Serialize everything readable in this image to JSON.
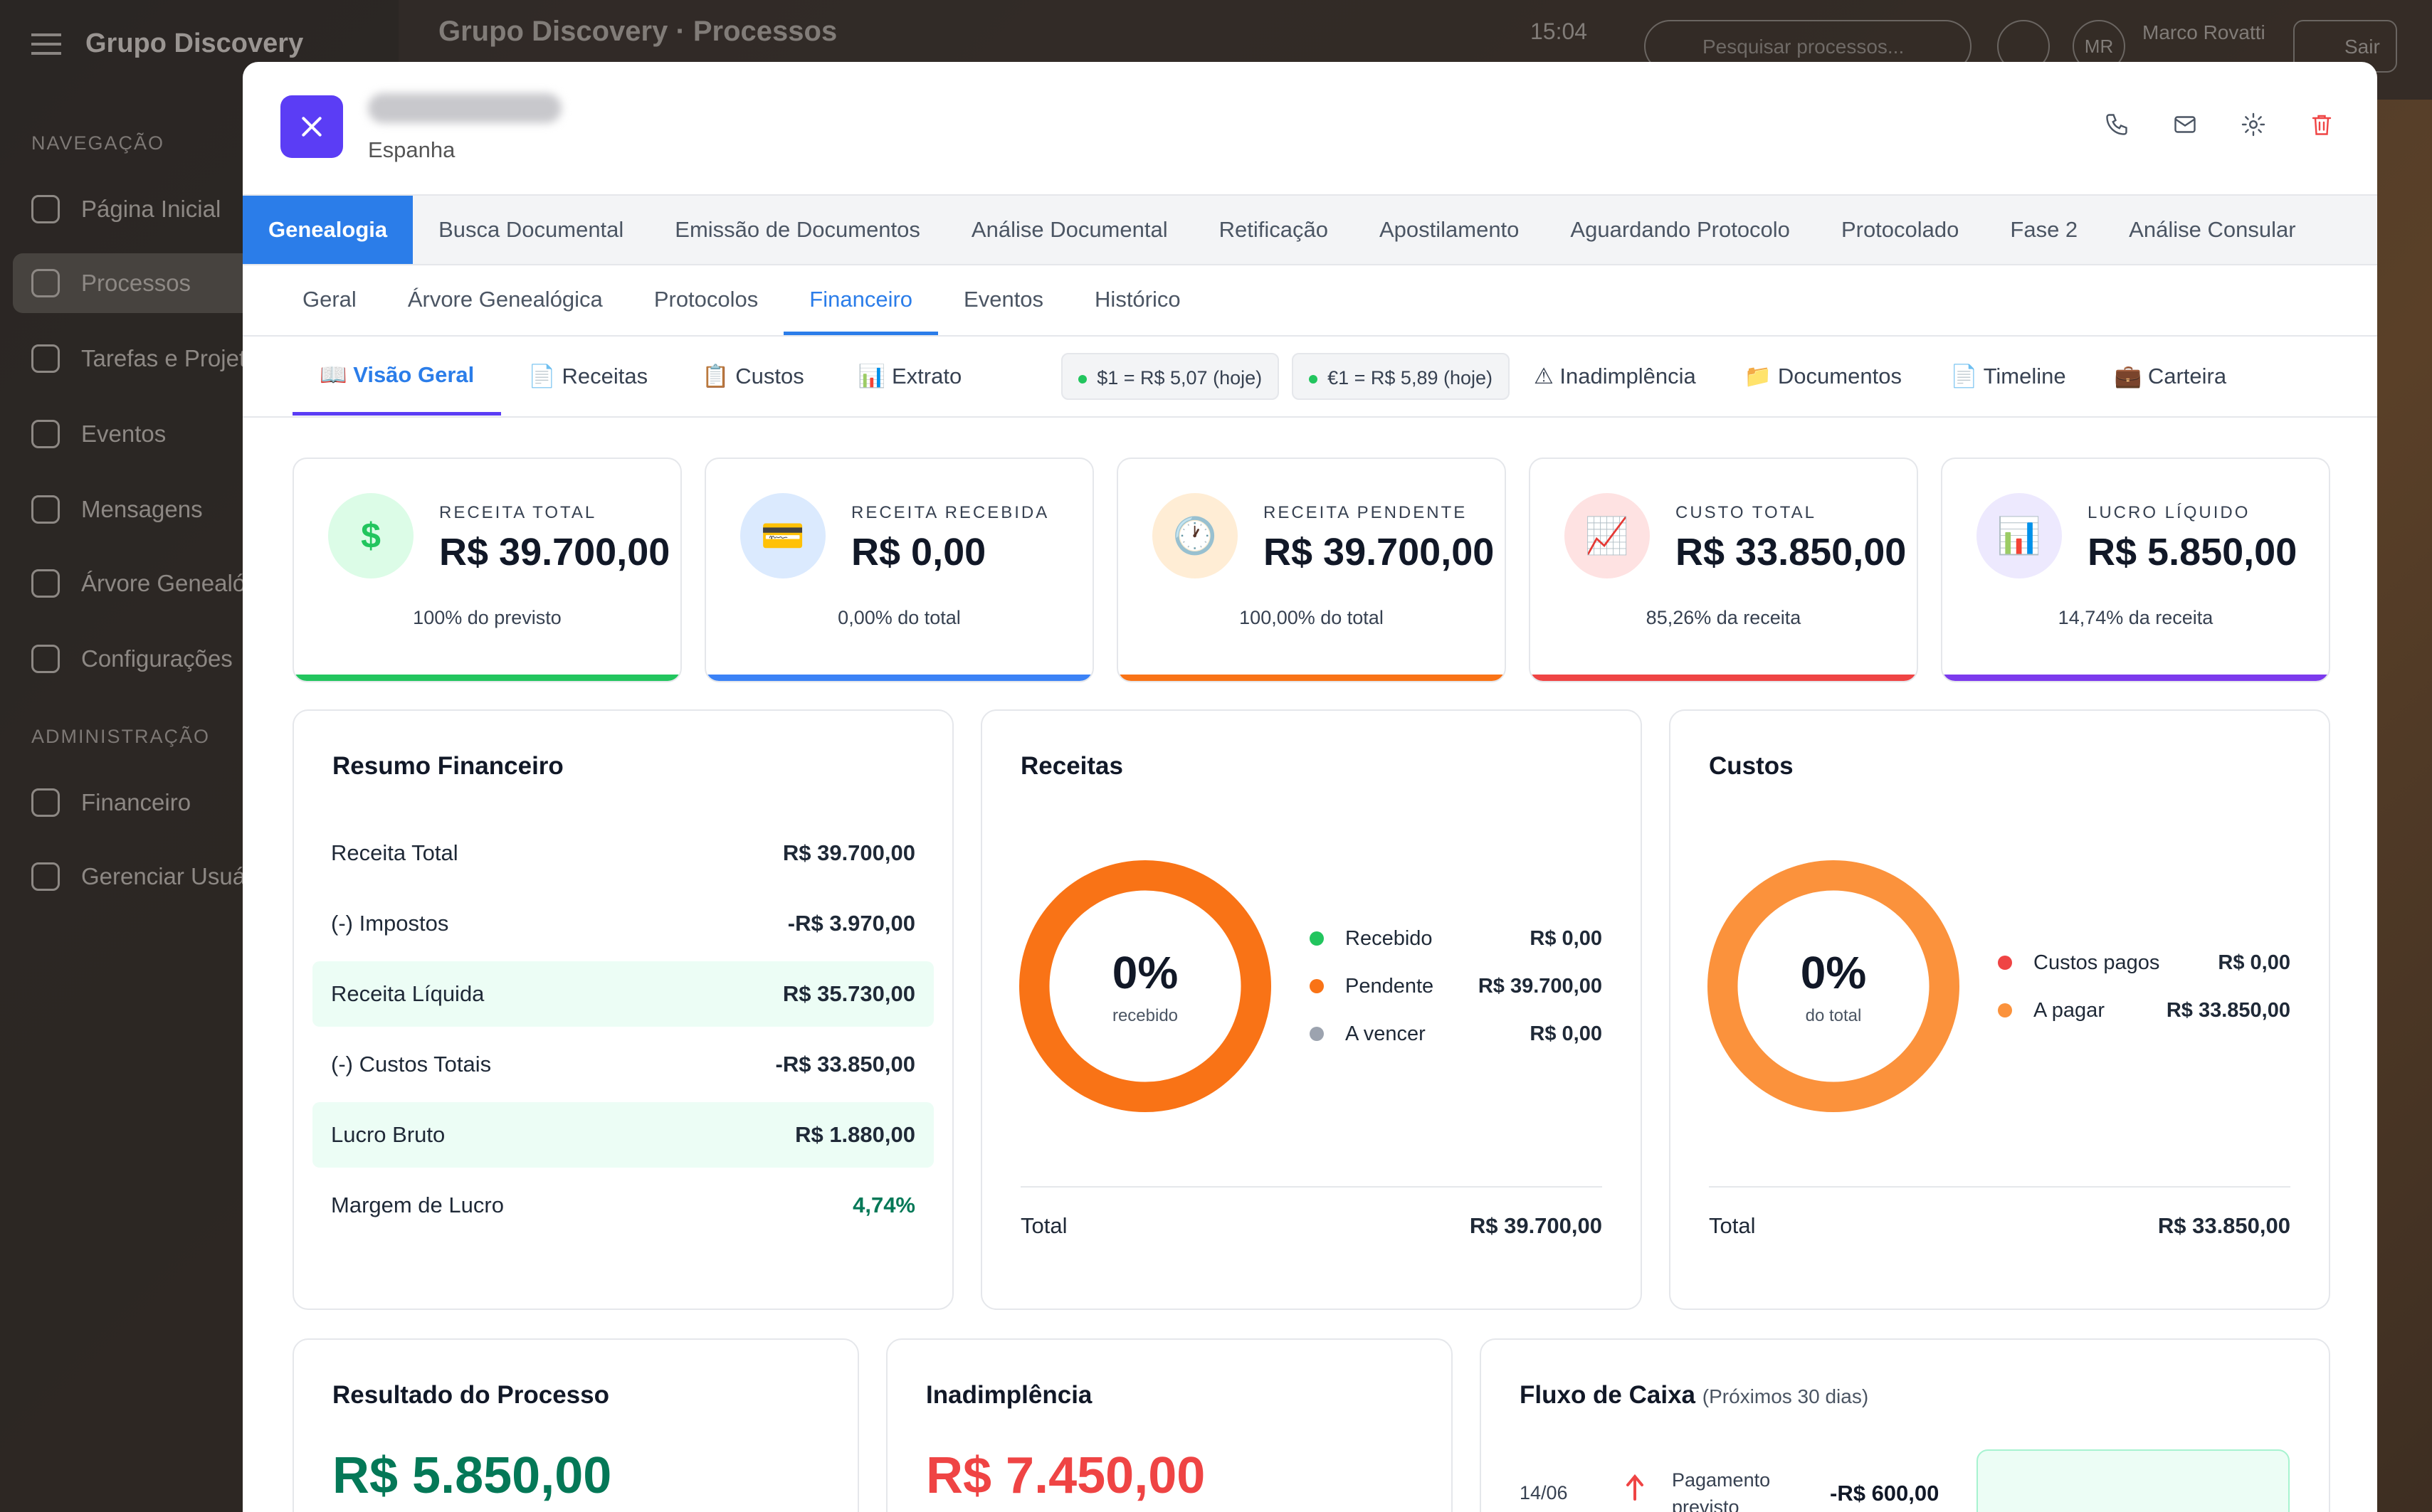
{
  "background": {
    "brand": "Grupo Discovery",
    "nav_section": "NAVEGAÇÃO",
    "admin_section": "ADMINISTRAÇÃO",
    "nav_items": [
      "Página Inicial",
      "Processos",
      "Tarefas e Projetos",
      "Eventos",
      "Mensagens",
      "Árvore Genealógica",
      "Configurações"
    ],
    "admin_items": [
      "Financeiro",
      "Gerenciar Usuários"
    ],
    "header_title": "Grupo Discovery · Processos",
    "time": "15:04",
    "search_placeholder": "Pesquisar processos...",
    "user_initials": "MR",
    "user_name": "Marco Rovatti",
    "logout": "Sair"
  },
  "modal": {
    "country": "Espanha",
    "phase_tabs": [
      "Genealogia",
      "Busca Documental",
      "Emissão de Documentos",
      "Análise Documental",
      "Retificação",
      "Apostilamento",
      "Aguardando Protocolo",
      "Protocolado",
      "Fase 2",
      "Análise Consular"
    ],
    "sub_tabs": [
      "Geral",
      "Árvore Genealógica",
      "Protocolos",
      "Financeiro",
      "Eventos",
      "Histórico"
    ],
    "fin_tabs": {
      "visao": "📖 Visão Geral",
      "receitas": "📄 Receitas",
      "custos": "📋 Custos",
      "extrato": "📊 Extrato",
      "usd_rate": "$1 = R$ 5,07 (hoje)",
      "eur_rate": "€1 = R$ 5,89 (hoje)",
      "inadimplencia": "⚠ Inadimplência",
      "documentos": "📁 Documentos",
      "timeline": "📄 Timeline",
      "carteira": "💼 Carteira"
    },
    "kpis": [
      {
        "icon": "$",
        "label": "RECEITA TOTAL",
        "value": "R$ 39.700,00",
        "sub": "100% do previsto",
        "color": "#22c55e",
        "bg": "#dcfce7"
      },
      {
        "icon": "💳",
        "label": "RECEITA RECEBIDA",
        "value": "R$ 0,00",
        "sub": "0,00% do total",
        "color": "#3b82f6",
        "bg": "#dbeafe"
      },
      {
        "icon": "🕐",
        "label": "RECEITA PENDENTE",
        "value": "R$ 39.700,00",
        "sub": "100,00% do total",
        "color": "#f97316",
        "bg": "#ffedd5"
      },
      {
        "icon": "📈",
        "label": "CUSTO TOTAL",
        "value": "R$ 33.850,00",
        "sub": "85,26% da receita",
        "color": "#ef4444",
        "bg": "#fee2e2"
      },
      {
        "icon": "📊",
        "label": "LUCRO LÍQUIDO",
        "value": "R$ 5.850,00",
        "sub": "14,74% da receita",
        "color": "#7c3aed",
        "bg": "#ede9fe"
      }
    ],
    "resumo": {
      "title": "Resumo Financeiro",
      "rows": [
        {
          "label": "Receita Total",
          "value": "R$ 39.700,00"
        },
        {
          "label": "(-) Impostos",
          "value": "-R$ 3.970,00"
        },
        {
          "label": "Receita Líquida",
          "value": "R$ 35.730,00"
        },
        {
          "label": "(-) Custos Totais",
          "value": "-R$ 33.850,00"
        },
        {
          "label": "Lucro Bruto",
          "value": "R$ 1.880,00"
        },
        {
          "label": "Margem de Lucro",
          "value": "4,74%"
        }
      ]
    },
    "receitas": {
      "title": "Receitas",
      "percent": "0%",
      "caption": "recebido",
      "legend": [
        {
          "label": "Recebido",
          "value": "R$ 0,00",
          "color": "#22c55e"
        },
        {
          "label": "Pendente",
          "value": "R$ 39.700,00",
          "color": "#f97316"
        },
        {
          "label": "A vencer",
          "value": "R$ 0,00",
          "color": "#9ca3af"
        }
      ],
      "ring_color": "#f97316",
      "total_label": "Total",
      "total_value": "R$ 39.700,00"
    },
    "custos": {
      "title": "Custos",
      "percent": "0%",
      "caption": "do total",
      "legend": [
        {
          "label": "Custos pagos",
          "value": "R$ 0,00",
          "color": "#ef4444"
        },
        {
          "label": "A pagar",
          "value": "R$ 33.850,00",
          "color": "#fb923c"
        }
      ],
      "ring_color": "#fb923c",
      "total_label": "Total",
      "total_value": "R$ 33.850,00"
    },
    "resultado": {
      "title": "Resultado do Processo",
      "value": "R$ 5.850,00",
      "color": "#047857"
    },
    "inadimplencia": {
      "title": "Inadimplência",
      "value": "R$ 7.450,00",
      "color": "#ef4444"
    },
    "fluxo": {
      "title": "Fluxo de Caixa",
      "subtitle": "(Próximos 30 dias)",
      "entry": {
        "date": "14/06",
        "desc": "Pagamento previsto",
        "value": "-R$ 600,00"
      }
    }
  }
}
